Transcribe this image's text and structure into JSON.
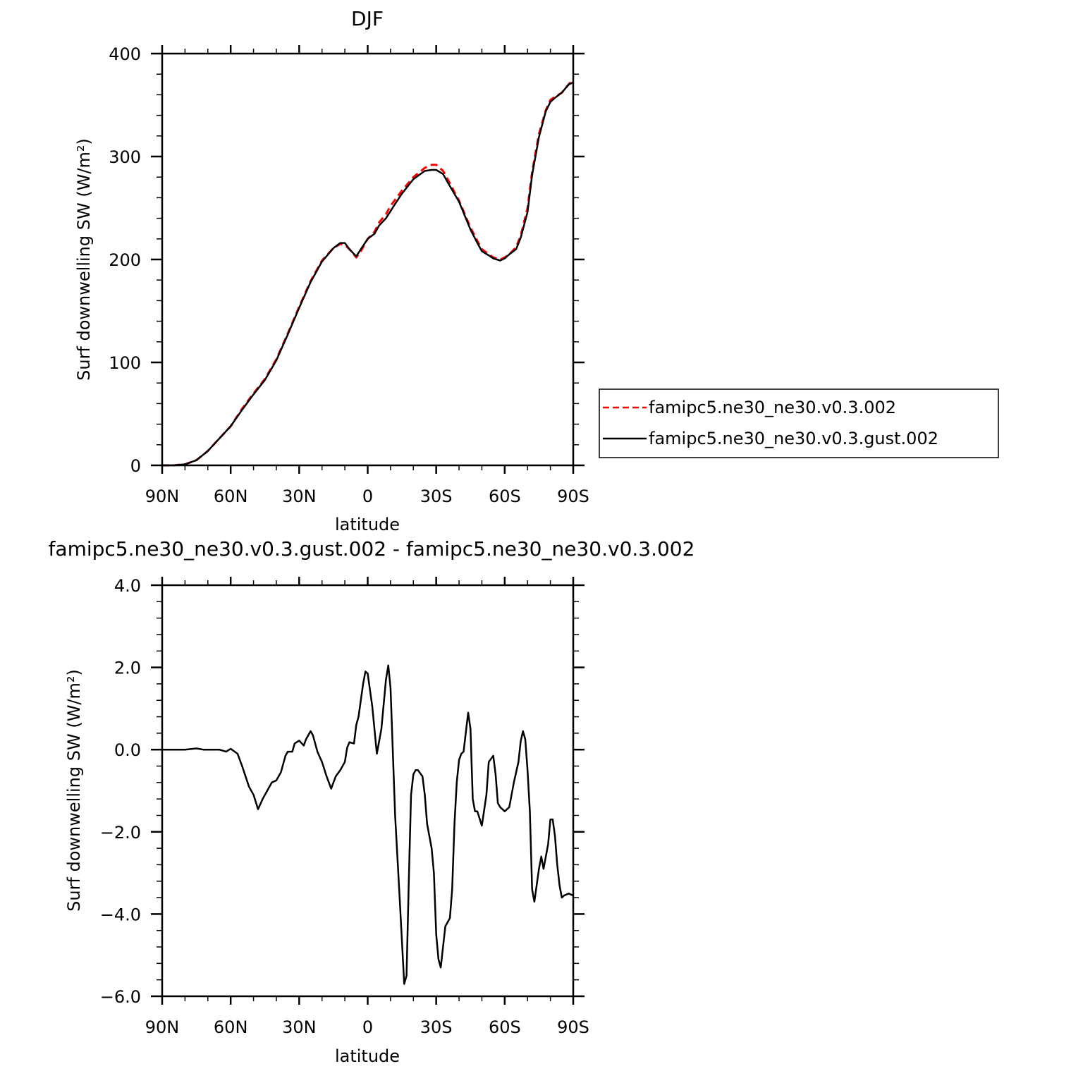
{
  "colors": {
    "series1": "#ff0000",
    "series2": "#000000",
    "axis": "#000000",
    "background": "#ffffff"
  },
  "chart_data": [
    {
      "type": "line",
      "title": "DJF",
      "xlabel": "latitude",
      "ylabel": "Surf downwelling SW (W/m²)",
      "xlim": [
        90,
        -90
      ],
      "ylim": [
        0,
        400
      ],
      "x_ticks": [
        90,
        60,
        30,
        0,
        -30,
        -60,
        -90
      ],
      "x_tick_labels": [
        "90N",
        "60N",
        "30N",
        "0",
        "30S",
        "60S",
        "90S"
      ],
      "y_ticks": [
        0,
        100,
        200,
        300,
        400
      ],
      "y_tick_labels": [
        "0",
        "100",
        "200",
        "300",
        "400"
      ],
      "legend_position": "right",
      "series": [
        {
          "name": "famipc5.ne30_ne30.v0.3.002",
          "color": "#ff0000",
          "style": "dashed",
          "x": [
            90,
            85,
            80,
            75,
            70,
            65,
            60,
            55,
            50,
            45,
            40,
            35,
            30,
            25,
            20,
            15,
            12,
            10,
            8,
            5,
            3,
            0,
            -3,
            -5,
            -8,
            -10,
            -12,
            -15,
            -20,
            -25,
            -28,
            -30,
            -33,
            -35,
            -40,
            -45,
            -48,
            -50,
            -53,
            -55,
            -58,
            -60,
            -62,
            -65,
            -67,
            -70,
            -72,
            -75,
            -78,
            -80,
            -82,
            -85,
            -88,
            -90
          ],
          "y": [
            0,
            0,
            1,
            5,
            14,
            26,
            38,
            55,
            70,
            84,
            103,
            128,
            154,
            179,
            199,
            211,
            215,
            214,
            210,
            202,
            208,
            220,
            227,
            236,
            244,
            252,
            258,
            267,
            280,
            289,
            292,
            292,
            286,
            278,
            257,
            231,
            218,
            210,
            205,
            202,
            200,
            202,
            205,
            212,
            223,
            250,
            285,
            322,
            345,
            355,
            358,
            362,
            370,
            375
          ]
        },
        {
          "name": "famipc5.ne30_ne30.v0.3.gust.002",
          "color": "#000000",
          "style": "solid",
          "x": [
            90,
            85,
            80,
            75,
            70,
            65,
            60,
            55,
            50,
            45,
            40,
            35,
            30,
            25,
            20,
            15,
            12,
            10,
            8,
            5,
            3,
            0,
            -3,
            -5,
            -8,
            -10,
            -12,
            -15,
            -20,
            -25,
            -28,
            -30,
            -33,
            -35,
            -40,
            -45,
            -48,
            -50,
            -53,
            -55,
            -58,
            -60,
            -62,
            -65,
            -67,
            -70,
            -72,
            -75,
            -78,
            -80,
            -82,
            -85,
            -88,
            -90
          ],
          "y": [
            0,
            0,
            1,
            5,
            14,
            26,
            38,
            54,
            69,
            83,
            102,
            127,
            153,
            178,
            198,
            211,
            216,
            216,
            210,
            203,
            210,
            220,
            225,
            233,
            240,
            247,
            254,
            264,
            278,
            286,
            287,
            287,
            283,
            275,
            256,
            229,
            216,
            208,
            204,
            201,
            199,
            201,
            205,
            210,
            221,
            246,
            282,
            319,
            344,
            353,
            357,
            362,
            370,
            372
          ]
        }
      ]
    },
    {
      "type": "line",
      "title": "famipc5.ne30_ne30.v0.3.gust.002 - famipc5.ne30_ne30.v0.3.002",
      "xlabel": "latitude",
      "ylabel": "Surf downwelling SW (W/m²)",
      "xlim": [
        90,
        -90
      ],
      "ylim": [
        -6.0,
        4.0
      ],
      "x_ticks": [
        90,
        60,
        30,
        0,
        -30,
        -60,
        -90
      ],
      "x_tick_labels": [
        "90N",
        "60N",
        "30N",
        "0",
        "30S",
        "60S",
        "90S"
      ],
      "y_ticks": [
        4.0,
        2.0,
        0.0,
        -2.0,
        -4.0,
        -6.0
      ],
      "y_tick_labels": [
        "4.0",
        "2.0",
        "0.0",
        "−2.0",
        "−4.0",
        "−6.0"
      ],
      "series": [
        {
          "color": "#000000",
          "style": "solid",
          "x": [
            90,
            80,
            75,
            72,
            68,
            65,
            62,
            60,
            57,
            55,
            52,
            50,
            48,
            46,
            44,
            42,
            40,
            38,
            36,
            35,
            33,
            32,
            30,
            28,
            27,
            25,
            24,
            22,
            20,
            18,
            16,
            14,
            12,
            10,
            9,
            8,
            6,
            5,
            4,
            2,
            1,
            0,
            -2,
            -4,
            -6,
            -8,
            -9,
            -10,
            -12,
            -14,
            -16,
            -17,
            -18,
            -19,
            -20,
            -21,
            -22,
            -24,
            -25,
            -26,
            -28,
            -29,
            -30,
            -31,
            -32,
            -34,
            -36,
            -37,
            -38,
            -39,
            -40,
            -41,
            -42,
            -44,
            -45,
            -46,
            -47,
            -48,
            -50,
            -52,
            -53,
            -55,
            -56,
            -57,
            -58,
            -60,
            -62,
            -64,
            -66,
            -67,
            -68,
            -69,
            -70,
            -71,
            -72,
            -73,
            -75,
            -76,
            -77,
            -79,
            -80,
            -81,
            -82,
            -83,
            -84,
            -85,
            -86,
            -88,
            -90
          ],
          "y": [
            0,
            0,
            0.03,
            0,
            0,
            0,
            -0.05,
            0.02,
            -0.1,
            -0.4,
            -0.9,
            -1.1,
            -1.45,
            -1.2,
            -1.0,
            -0.8,
            -0.75,
            -0.55,
            -0.15,
            -0.05,
            -0.05,
            0.15,
            0.22,
            0.1,
            0.25,
            0.45,
            0.35,
            -0.05,
            -0.3,
            -0.65,
            -0.95,
            -0.65,
            -0.5,
            -0.3,
            0.05,
            0.18,
            0.15,
            0.6,
            0.8,
            1.6,
            1.9,
            1.85,
            1.05,
            -0.1,
            0.5,
            1.7,
            2.05,
            1.5,
            -1.6,
            -3.6,
            -5.7,
            -5.5,
            -3.2,
            -1.1,
            -0.6,
            -0.5,
            -0.5,
            -0.65,
            -1.1,
            -1.8,
            -2.4,
            -3.0,
            -4.5,
            -5.1,
            -5.3,
            -4.3,
            -4.1,
            -3.4,
            -1.8,
            -0.8,
            -0.25,
            -0.1,
            -0.05,
            0.9,
            0.5,
            -1.2,
            -1.5,
            -1.5,
            -1.85,
            -1.1,
            -0.3,
            -0.15,
            -0.6,
            -1.3,
            -1.4,
            -1.5,
            -1.4,
            -0.8,
            -0.3,
            0.2,
            0.45,
            0.25,
            -0.5,
            -1.5,
            -3.4,
            -3.7,
            -2.9,
            -2.6,
            -2.9,
            -2.3,
            -1.7,
            -1.7,
            -2.1,
            -2.8,
            -3.3,
            -3.6,
            -3.55,
            -3.5,
            -3.55
          ]
        }
      ]
    }
  ]
}
